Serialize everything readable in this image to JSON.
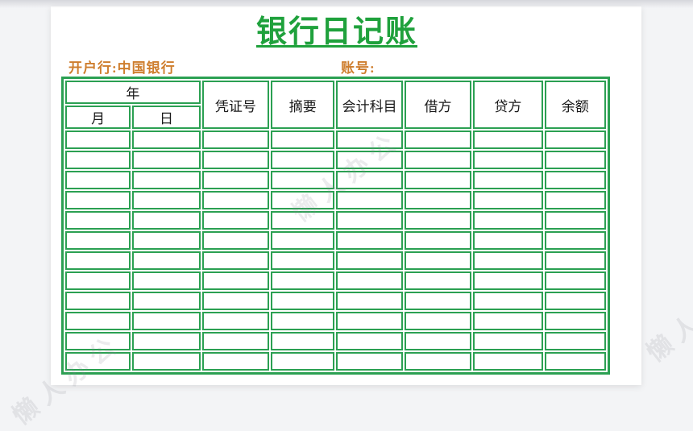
{
  "page": {
    "title": "银行日记账"
  },
  "meta": {
    "bank_label": "开户行:中国银行",
    "account_label": "账号:"
  },
  "table": {
    "header": {
      "year": "年",
      "month": "月",
      "day": "日",
      "columns": [
        "凭证号",
        "摘要",
        "会计科目",
        "借方",
        "贷方",
        "余额"
      ]
    },
    "row_count": 12,
    "column_count": 8
  },
  "watermark": {
    "text": "懒人办公"
  },
  "colors": {
    "grid_green": "#2ba052",
    "title_green": "#1fa13c",
    "label_orange": "#ce7e2e",
    "page_background": "#f3f4f6",
    "sheet_white": "#ffffff"
  }
}
